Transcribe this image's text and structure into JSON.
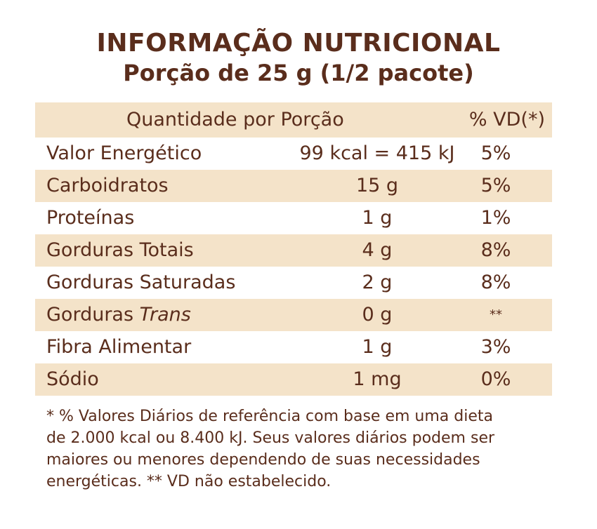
{
  "title": "INFORMAÇÃO NUTRICIONAL",
  "subtitle": "Porção de 25 g (1/2 pacote)",
  "table": {
    "header": {
      "quantity": "Quantidade por Porção",
      "vd": "% VD(*)"
    },
    "rows": [
      {
        "name": "Valor Energético",
        "qty": "99 kcal = 415 kJ",
        "vd": "5%"
      },
      {
        "name": "Carboidratos",
        "qty": "15 g",
        "vd": "5%"
      },
      {
        "name": "Proteínas",
        "qty": "1 g",
        "vd": "1%"
      },
      {
        "name": "Gorduras Totais",
        "qty": "4 g",
        "vd": "8%"
      },
      {
        "name": "Gorduras Saturadas",
        "qty": "2 g",
        "vd": "8%"
      },
      {
        "name_prefix": "Gorduras ",
        "name_italic": "Trans",
        "qty": "0 g",
        "vd": "**"
      },
      {
        "name": "Fibra Alimentar",
        "qty": "1 g",
        "vd": "3%"
      },
      {
        "name": "Sódio",
        "qty": "1 mg",
        "vd": "0%"
      }
    ]
  },
  "footnote": {
    "line1": "* % Valores Diários de referência com base em uma dieta",
    "line2": "de 2.000 kcal ou 8.400 kJ. Seus valores diários podem ser",
    "line3": "maiores ou menores dependendo de suas necessidades",
    "line4": "energéticas. ** VD não estabelecido."
  },
  "colors": {
    "text": "#5a2d1c",
    "band": "#f4e3c9",
    "background": "#ffffff"
  }
}
